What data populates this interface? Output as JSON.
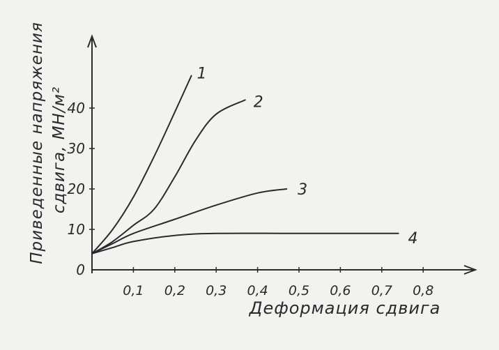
{
  "chart_data": {
    "type": "line",
    "xlabel": "Деформация сдвига",
    "ylabel_line1": "Приведенные напряжения",
    "ylabel_line2": "сдвига, МН/м²",
    "x_ticks": [
      "0,1",
      "0,2",
      "0,3",
      "0,4",
      "0,5",
      "0,6",
      "0,7",
      "0,8"
    ],
    "x_tick_values": [
      0.1,
      0.2,
      0.3,
      0.4,
      0.5,
      0.6,
      0.7,
      0.8
    ],
    "y_ticks": [
      "0",
      "10",
      "20",
      "30",
      "40"
    ],
    "y_tick_values": [
      0,
      10,
      20,
      30,
      40
    ],
    "xlim": [
      0,
      0.93
    ],
    "ylim": [
      0,
      52
    ],
    "grid": false,
    "series": [
      {
        "name": "1",
        "x": [
          0,
          0.05,
          0.1,
          0.15,
          0.2,
          0.24
        ],
        "y": [
          4,
          10,
          18,
          28,
          39,
          48
        ]
      },
      {
        "name": "2",
        "x": [
          0,
          0.05,
          0.1,
          0.15,
          0.2,
          0.25,
          0.3,
          0.37
        ],
        "y": [
          4,
          7,
          11,
          15,
          23,
          32,
          38.5,
          42
        ]
      },
      {
        "name": "3",
        "x": [
          0,
          0.05,
          0.1,
          0.2,
          0.3,
          0.4,
          0.47
        ],
        "y": [
          4,
          6.5,
          9,
          12.5,
          16,
          19,
          20
        ]
      },
      {
        "name": "4",
        "x": [
          0,
          0.05,
          0.1,
          0.2,
          0.3,
          0.5,
          0.74
        ],
        "y": [
          4,
          5.5,
          7,
          8.5,
          9,
          9,
          9
        ]
      }
    ],
    "colors": {
      "ink": "#2a2a2e",
      "paper": "#f2f2ee"
    }
  }
}
